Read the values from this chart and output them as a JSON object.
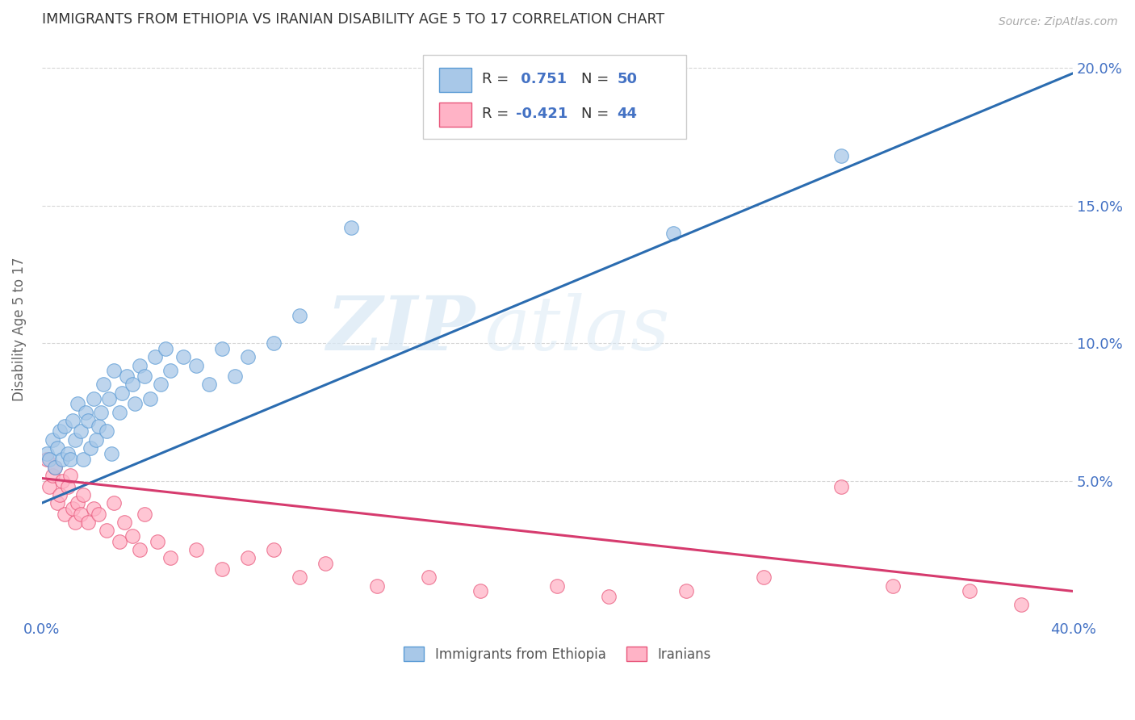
{
  "title": "IMMIGRANTS FROM ETHIOPIA VS IRANIAN DISABILITY AGE 5 TO 17 CORRELATION CHART",
  "source": "Source: ZipAtlas.com",
  "ylabel": "Disability Age 5 to 17",
  "xlim": [
    0.0,
    0.4
  ],
  "ylim": [
    0.0,
    0.21
  ],
  "xtick_vals": [
    0.0,
    0.1,
    0.2,
    0.3,
    0.4
  ],
  "xtick_labels": [
    "0.0%",
    "",
    "",
    "",
    "40.0%"
  ],
  "ytick_vals": [
    0.05,
    0.1,
    0.15,
    0.2
  ],
  "right_ytick_labels": [
    "5.0%",
    "10.0%",
    "15.0%",
    "20.0%"
  ],
  "watermark_zip": "ZIP",
  "watermark_atlas": "atlas",
  "ethiopia_color": "#A8C8E8",
  "ethiopia_edge_color": "#5B9BD5",
  "iran_color": "#FFB3C6",
  "iran_edge_color": "#E8567A",
  "ethiopia_line_color": "#2B6CB0",
  "iran_line_color": "#D63B6E",
  "ethiopia_trendline_x": [
    0.0,
    0.4
  ],
  "ethiopia_trendline_y": [
    0.042,
    0.198
  ],
  "iran_trendline_x": [
    0.0,
    0.4
  ],
  "iran_trendline_y": [
    0.051,
    0.01
  ],
  "ethiopia_scatter_x": [
    0.002,
    0.003,
    0.004,
    0.005,
    0.006,
    0.007,
    0.008,
    0.009,
    0.01,
    0.011,
    0.012,
    0.013,
    0.014,
    0.015,
    0.016,
    0.017,
    0.018,
    0.019,
    0.02,
    0.021,
    0.022,
    0.023,
    0.024,
    0.025,
    0.026,
    0.027,
    0.028,
    0.03,
    0.031,
    0.033,
    0.035,
    0.036,
    0.038,
    0.04,
    0.042,
    0.044,
    0.046,
    0.048,
    0.05,
    0.055,
    0.06,
    0.065,
    0.07,
    0.075,
    0.08,
    0.09,
    0.1,
    0.12,
    0.245,
    0.31
  ],
  "ethiopia_scatter_y": [
    0.06,
    0.058,
    0.065,
    0.055,
    0.062,
    0.068,
    0.058,
    0.07,
    0.06,
    0.058,
    0.072,
    0.065,
    0.078,
    0.068,
    0.058,
    0.075,
    0.072,
    0.062,
    0.08,
    0.065,
    0.07,
    0.075,
    0.085,
    0.068,
    0.08,
    0.06,
    0.09,
    0.075,
    0.082,
    0.088,
    0.085,
    0.078,
    0.092,
    0.088,
    0.08,
    0.095,
    0.085,
    0.098,
    0.09,
    0.095,
    0.092,
    0.085,
    0.098,
    0.088,
    0.095,
    0.1,
    0.11,
    0.142,
    0.14,
    0.168
  ],
  "iran_scatter_x": [
    0.002,
    0.003,
    0.004,
    0.005,
    0.006,
    0.007,
    0.008,
    0.009,
    0.01,
    0.011,
    0.012,
    0.013,
    0.014,
    0.015,
    0.016,
    0.018,
    0.02,
    0.022,
    0.025,
    0.028,
    0.03,
    0.032,
    0.035,
    0.038,
    0.04,
    0.045,
    0.05,
    0.06,
    0.07,
    0.08,
    0.09,
    0.1,
    0.11,
    0.13,
    0.15,
    0.17,
    0.2,
    0.22,
    0.25,
    0.28,
    0.31,
    0.33,
    0.36,
    0.38
  ],
  "iran_scatter_y": [
    0.058,
    0.048,
    0.052,
    0.055,
    0.042,
    0.045,
    0.05,
    0.038,
    0.048,
    0.052,
    0.04,
    0.035,
    0.042,
    0.038,
    0.045,
    0.035,
    0.04,
    0.038,
    0.032,
    0.042,
    0.028,
    0.035,
    0.03,
    0.025,
    0.038,
    0.028,
    0.022,
    0.025,
    0.018,
    0.022,
    0.025,
    0.015,
    0.02,
    0.012,
    0.015,
    0.01,
    0.012,
    0.008,
    0.01,
    0.015,
    0.048,
    0.012,
    0.01,
    0.005
  ],
  "bottom_legend": [
    {
      "label": "Immigrants from Ethiopia",
      "color": "#A8C8E8",
      "edge": "#5B9BD5"
    },
    {
      "label": "Iranians",
      "color": "#FFB3C6",
      "edge": "#E8567A"
    }
  ],
  "grid_color": "#CCCCCC",
  "background_color": "#FFFFFF",
  "title_color": "#333333",
  "axis_label_color": "#666666",
  "tick_color": "#4472C4",
  "legend_r1": "R =  0.751",
  "legend_n1": "N = 50",
  "legend_r2": "R = -0.421",
  "legend_n2": "N = 44"
}
